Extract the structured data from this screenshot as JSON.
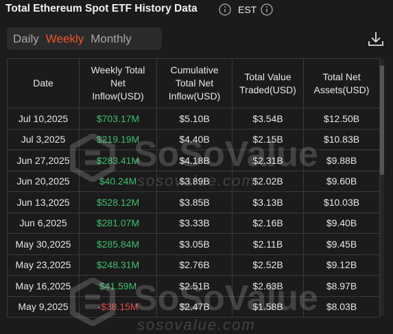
{
  "header": {
    "title": "Total Ethereum Spot ETF History Data",
    "timezone": "EST"
  },
  "tabs": {
    "items": [
      "Daily",
      "Weekly",
      "Monthly"
    ],
    "active": 1
  },
  "table": {
    "columns": [
      "Date",
      "Weekly Total Net Inflow(USD)",
      "Cumulative Total Net Inflow(USD)",
      "Total Value Traded(USD)",
      "Total Net Assets(USD)"
    ],
    "rows": [
      [
        "Jul 10,2025",
        "$703.17M",
        "$5.10B",
        "$3.54B",
        "$12.50B"
      ],
      [
        "Jul 3,2025",
        "$219.19M",
        "$4.40B",
        "$2.15B",
        "$10.83B"
      ],
      [
        "Jun 27,2025",
        "$283.41M",
        "$4.18B",
        "$2.31B",
        "$9.88B"
      ],
      [
        "Jun 20,2025",
        "$40.24M",
        "$3.89B",
        "$2.02B",
        "$9.60B"
      ],
      [
        "Jun 13,2025",
        "$528.12M",
        "$3.85B",
        "$3.13B",
        "$10.03B"
      ],
      [
        "Jun 6,2025",
        "$281.07M",
        "$3.33B",
        "$2.16B",
        "$9.40B"
      ],
      [
        "May 30,2025",
        "$285.84M",
        "$3.05B",
        "$2.11B",
        "$9.45B"
      ],
      [
        "May 23,2025",
        "$248.31M",
        "$2.76B",
        "$2.52B",
        "$9.12B"
      ],
      [
        "May 16,2025",
        "$41.59M",
        "$2.51B",
        "$2.63B",
        "$8.97B"
      ],
      [
        "May 9,2025",
        "-$38.15M",
        "$2.47B",
        "$1.58B",
        "$8.03B"
      ]
    ]
  },
  "watermark": {
    "brand": "SoSoValue",
    "url": "sosovalue.com"
  }
}
